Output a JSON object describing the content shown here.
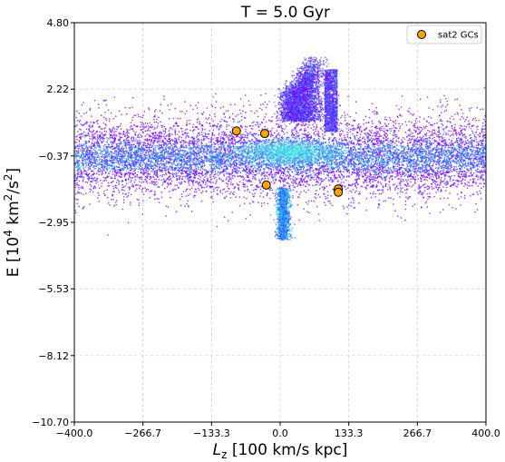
{
  "chart_data": {
    "type": "scatter",
    "title": "T = 5.0 Gyr",
    "xlabel": "L_z [100 km/s kpc]",
    "ylabel": "E [10^4 km^2/s^2]",
    "xlim": [
      -400.0,
      400.0
    ],
    "ylim": [
      -10.7,
      4.8
    ],
    "xticks": [
      -400.0,
      -266.7,
      -133.3,
      0.0,
      133.3,
      266.7,
      400.0
    ],
    "xtick_labels": [
      "−400.0",
      "−266.7",
      "−133.3",
      "0.0",
      "133.3",
      "266.7",
      "400.0"
    ],
    "yticks": [
      4.8,
      2.22,
      -0.37,
      -2.95,
      -5.53,
      -8.12,
      -10.7
    ],
    "ytick_labels": [
      "4.80",
      "2.22",
      "−0.37",
      "−2.95",
      "−5.53",
      "−8.12",
      "−10.70"
    ],
    "grid": true,
    "legend": {
      "placement": "top-right",
      "entries": [
        "sat2 GCs"
      ]
    },
    "colors": {
      "gc_fill": "#ffa500",
      "gc_edge": "#000000",
      "density_low": "#7b00ff",
      "density_mid": "#3a5cff",
      "density_high": "#1fd6e6"
    },
    "series": [
      {
        "name": "sat2 GCs",
        "points": [
          {
            "x": -85,
            "y": 0.6
          },
          {
            "x": -30,
            "y": 0.5
          },
          {
            "x": -27,
            "y": -1.5
          },
          {
            "x": 113,
            "y": -1.65
          },
          {
            "x": 113,
            "y": -1.78
          }
        ]
      }
    ]
  }
}
